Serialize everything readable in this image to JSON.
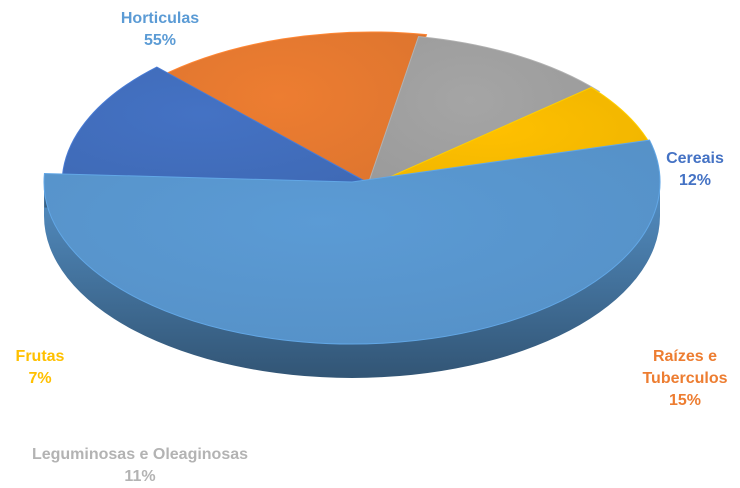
{
  "chart_data": {
    "type": "pie",
    "title": "",
    "style": "3d-exploded",
    "slices": [
      {
        "label": "Horticulas",
        "label_lines": [
          "Horticulas"
        ],
        "percent_label": "55%",
        "value": 55,
        "color": "#5b9bd5"
      },
      {
        "label": "Cereais",
        "label_lines": [
          "Cereais"
        ],
        "percent_label": "12%",
        "value": 12,
        "color": "#4472c4"
      },
      {
        "label": "Raízes e Tuberculos",
        "label_lines": [
          "Raízes e",
          "Tuberculos"
        ],
        "percent_label": "15%",
        "value": 15,
        "color": "#ed7d31"
      },
      {
        "label": "Leguminosas e Oleaginosas",
        "label_lines": [
          "Leguminosas e Oleaginosas"
        ],
        "percent_label": "11%",
        "value": 11,
        "color": "#a5a5a5"
      },
      {
        "label": "Frutas",
        "label_lines": [
          "Frutas"
        ],
        "percent_label": "7%",
        "value": 7,
        "color": "#ffc000"
      }
    ]
  }
}
